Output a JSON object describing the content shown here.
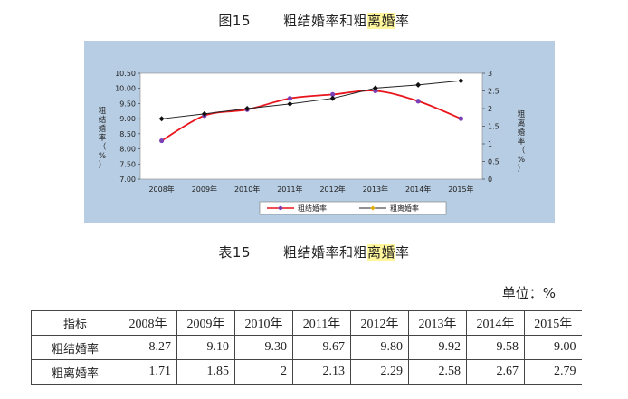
{
  "figure": {
    "number": "图15",
    "title_part1": "粗结婚率和粗",
    "title_highlight": "离婚",
    "title_part2": "率"
  },
  "table_caption": {
    "number": "表15",
    "title_part1": "粗结婚率和粗",
    "title_highlight": "离婚",
    "title_part2": "率"
  },
  "unit_label": "单位：%",
  "table": {
    "header_label": "指标",
    "years": [
      "2008年",
      "2009年",
      "2010年",
      "2011年",
      "2012年",
      "2013年",
      "2014年",
      "2015年"
    ],
    "rows": [
      {
        "label": "粗结婚率",
        "values": [
          "8.27",
          "9.10",
          "9.30",
          "9.67",
          "9.80",
          "9.92",
          "9.58",
          "9.00"
        ]
      },
      {
        "label": "粗离婚率",
        "values": [
          "1.71",
          "1.85",
          "2",
          "2.13",
          "2.29",
          "2.58",
          "2.67",
          "2.79"
        ]
      }
    ]
  },
  "chart_data": {
    "type": "line",
    "categories": [
      "2008年",
      "2009年",
      "2010年",
      "2011年",
      "2012年",
      "2013年",
      "2014年",
      "2015年"
    ],
    "series": [
      {
        "name": "粗结婚率",
        "axis": "left",
        "color": "#e8141b",
        "marker_color": "#7b3fb5",
        "values": [
          8.27,
          9.1,
          9.3,
          9.67,
          9.8,
          9.92,
          9.58,
          9.0
        ]
      },
      {
        "name": "粗离婚率",
        "axis": "right",
        "color": "#222222",
        "marker_color": "#111111",
        "values": [
          1.71,
          1.85,
          2,
          2.13,
          2.29,
          2.58,
          2.67,
          2.79
        ]
      }
    ],
    "y_left": {
      "label_chars": [
        "粗",
        "结",
        "婚",
        "率",
        "（",
        "%",
        "）"
      ],
      "range": [
        7.0,
        10.5
      ],
      "ticks": [
        "7.00",
        "7.50",
        "8.00",
        "8.50",
        "9.00",
        "9.50",
        "10.00",
        "10.50"
      ]
    },
    "y_right": {
      "label_chars": [
        "粗",
        "离",
        "婚",
        "率",
        "（",
        "%",
        "）"
      ],
      "range": [
        0,
        3
      ],
      "ticks": [
        "0",
        "0.5",
        "1",
        "1.5",
        "2",
        "2.5",
        "3"
      ]
    },
    "legend_position": "bottom",
    "plot_background": "#ffffff",
    "panel_background": "#b7cde3"
  }
}
